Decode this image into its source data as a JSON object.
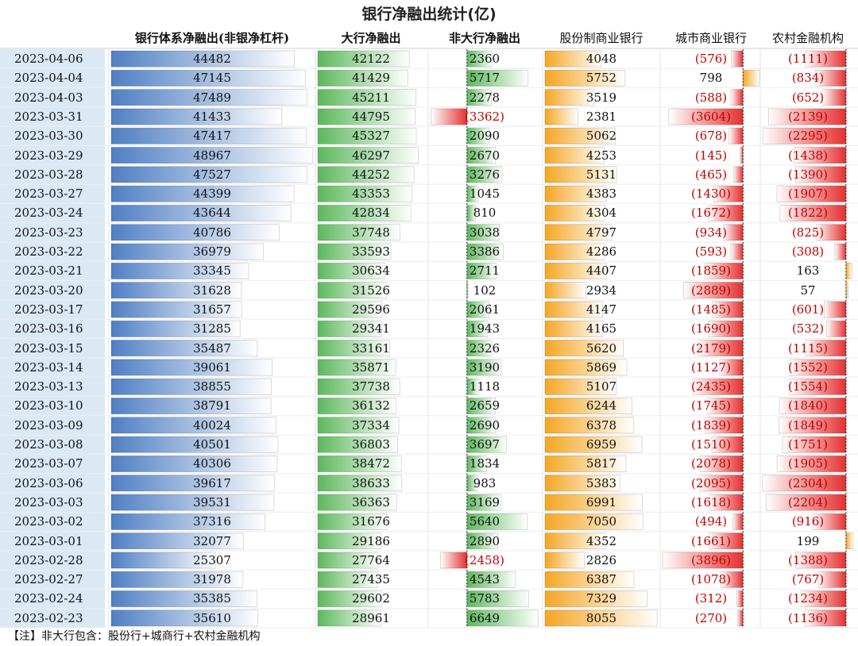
{
  "chart_data": {
    "type": "table",
    "title": "银行净融出统计(亿)",
    "columns": [
      "银行体系净融出(非银净杠杆)",
      "大行净融出",
      "非大行净融出",
      "股份制商业银行",
      "城市商业银行",
      "农村金融机构"
    ],
    "rows": [
      {
        "date": "2023-04-06",
        "values": [
          44482,
          42122,
          2360,
          4048,
          -576,
          -1111
        ]
      },
      {
        "date": "2023-04-04",
        "values": [
          47145,
          41429,
          5717,
          5752,
          798,
          -834
        ]
      },
      {
        "date": "2023-04-03",
        "values": [
          47489,
          45211,
          2278,
          3519,
          -588,
          -652
        ]
      },
      {
        "date": "2023-03-31",
        "values": [
          41433,
          44795,
          -3362,
          2381,
          -3604,
          -2139
        ]
      },
      {
        "date": "2023-03-30",
        "values": [
          47417,
          45327,
          2090,
          5062,
          -678,
          -2295
        ]
      },
      {
        "date": "2023-03-29",
        "values": [
          48967,
          46297,
          2670,
          4253,
          -145,
          -1438
        ]
      },
      {
        "date": "2023-03-28",
        "values": [
          47527,
          44252,
          3276,
          5131,
          -465,
          -1390
        ]
      },
      {
        "date": "2023-03-27",
        "values": [
          44399,
          43353,
          1045,
          4383,
          -1430,
          -1907
        ]
      },
      {
        "date": "2023-03-24",
        "values": [
          43644,
          42834,
          810,
          4304,
          -1672,
          -1822
        ]
      },
      {
        "date": "2023-03-23",
        "values": [
          40786,
          37748,
          3038,
          4797,
          -934,
          -825
        ]
      },
      {
        "date": "2023-03-22",
        "values": [
          36979,
          33593,
          3386,
          4286,
          -593,
          -308
        ]
      },
      {
        "date": "2023-03-21",
        "values": [
          33345,
          30634,
          2711,
          4407,
          -1859,
          163
        ]
      },
      {
        "date": "2023-03-20",
        "values": [
          31628,
          31526,
          102,
          2934,
          -2889,
          57
        ]
      },
      {
        "date": "2023-03-17",
        "values": [
          31657,
          29596,
          2061,
          4147,
          -1485,
          -601
        ]
      },
      {
        "date": "2023-03-16",
        "values": [
          31285,
          29341,
          1943,
          4165,
          -1690,
          -532
        ]
      },
      {
        "date": "2023-03-15",
        "values": [
          35487,
          33161,
          2326,
          5620,
          -2179,
          -1115
        ]
      },
      {
        "date": "2023-03-14",
        "values": [
          39061,
          35871,
          3190,
          5869,
          -1127,
          -1552
        ]
      },
      {
        "date": "2023-03-13",
        "values": [
          38855,
          37738,
          1118,
          5107,
          -2435,
          -1554
        ]
      },
      {
        "date": "2023-03-10",
        "values": [
          38791,
          36132,
          2659,
          6244,
          -1745,
          -1840
        ]
      },
      {
        "date": "2023-03-09",
        "values": [
          40024,
          37334,
          2690,
          6378,
          -1839,
          -1849
        ]
      },
      {
        "date": "2023-03-08",
        "values": [
          40501,
          36803,
          3697,
          6959,
          -1510,
          -1751
        ]
      },
      {
        "date": "2023-03-07",
        "values": [
          40306,
          38472,
          1834,
          5817,
          -2078,
          -1905
        ]
      },
      {
        "date": "2023-03-06",
        "values": [
          39617,
          38633,
          983,
          5383,
          -2095,
          -2304
        ]
      },
      {
        "date": "2023-03-03",
        "values": [
          39531,
          36363,
          3169,
          6991,
          -1618,
          -2204
        ]
      },
      {
        "date": "2023-03-02",
        "values": [
          37316,
          31676,
          5640,
          7050,
          -494,
          -916
        ]
      },
      {
        "date": "2023-03-01",
        "values": [
          32077,
          29186,
          2890,
          4352,
          -1661,
          199
        ]
      },
      {
        "date": "2023-02-28",
        "values": [
          25307,
          27764,
          -2458,
          2826,
          -3896,
          -1388
        ]
      },
      {
        "date": "2023-02-27",
        "values": [
          31978,
          27435,
          4543,
          6387,
          -1078,
          -767
        ]
      },
      {
        "date": "2023-02-24",
        "values": [
          35385,
          29602,
          5783,
          7329,
          -312,
          -1234
        ]
      },
      {
        "date": "2023-02-23",
        "values": [
          35610,
          28961,
          6649,
          8055,
          -270,
          -1136
        ]
      }
    ],
    "bar_colors": {
      "total": "#4f7fc4",
      "big": "#5cb85c",
      "nonbig": "#5cb85c",
      "joint": "#f5a623",
      "city_pos": "#f5a623",
      "rural_pos": "#f5a623",
      "negative": "#e53030"
    }
  },
  "note": "【注】非大行包含：股份行+城商行+农村金融机构"
}
